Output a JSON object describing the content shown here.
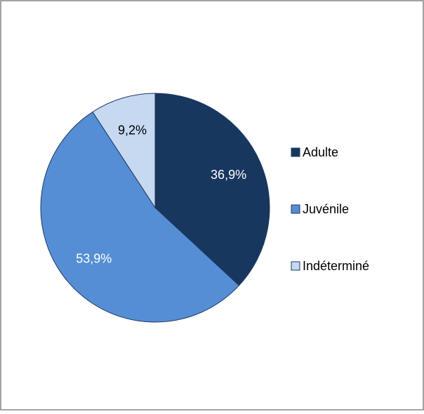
{
  "chart_data": {
    "type": "pie",
    "categories": [
      "Adulte",
      "Juvénile",
      "Indéterminé"
    ],
    "values": [
      36.9,
      53.9,
      9.2
    ],
    "value_labels": [
      "36,9%",
      "53,9%",
      "9,2%"
    ],
    "colors": [
      "#17375e",
      "#558ed5",
      "#c6d9f1"
    ],
    "label_colors": [
      "#ffffff",
      "#ffffff",
      "#000000"
    ],
    "legend": "right"
  }
}
